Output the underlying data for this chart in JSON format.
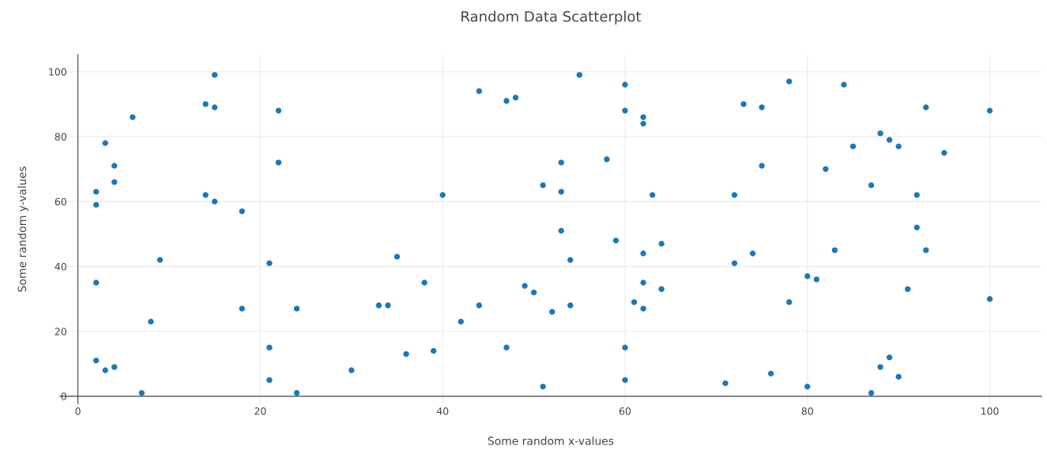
{
  "chart_data": {
    "type": "scatter",
    "title": "Random Data Scatterplot",
    "xlabel": "Some random x-values",
    "ylabel": "Some random y-values",
    "series": [
      {
        "color": "#1f77b4",
        "x": [
          2,
          3,
          4,
          7,
          2,
          2,
          2,
          3,
          4,
          4,
          6,
          8,
          9,
          14,
          14,
          15,
          15,
          15,
          18,
          18,
          21,
          21,
          21,
          22,
          22,
          24,
          24,
          30,
          33,
          34,
          35,
          36,
          38,
          39,
          40,
          42,
          44,
          44,
          47,
          47,
          48,
          49,
          50,
          51,
          51,
          52,
          53,
          53,
          53,
          54,
          54,
          55,
          58,
          59,
          60,
          60,
          60,
          60,
          61,
          62,
          62,
          62,
          62,
          62,
          63,
          64,
          64,
          71,
          72,
          72,
          73,
          74,
          75,
          75,
          76,
          78,
          78,
          80,
          80,
          81,
          82,
          83,
          84,
          85,
          87,
          87,
          88,
          88,
          89,
          89,
          90,
          90,
          91,
          92,
          92,
          93,
          93,
          95,
          100,
          100
        ],
        "values": [
          11,
          8,
          9,
          1,
          35,
          59,
          63,
          78,
          71,
          66,
          86,
          23,
          42,
          90,
          62,
          99,
          89,
          60,
          57,
          27,
          41,
          15,
          5,
          88,
          72,
          27,
          1,
          8,
          28,
          28,
          43,
          13,
          35,
          14,
          62,
          23,
          94,
          28,
          91,
          15,
          92,
          34,
          32,
          65,
          3,
          26,
          72,
          63,
          51,
          42,
          28,
          99,
          73,
          48,
          96,
          88,
          15,
          5,
          29,
          86,
          84,
          44,
          35,
          27,
          62,
          47,
          33,
          4,
          62,
          41,
          90,
          44,
          89,
          71,
          7,
          97,
          29,
          37,
          3,
          36,
          70,
          45,
          96,
          77,
          65,
          1,
          81,
          9,
          79,
          12,
          77,
          6,
          33,
          62,
          52,
          89,
          45,
          75,
          88,
          30
        ]
      }
    ],
    "marker": "circle",
    "xlim": [
      -2,
      105.7
    ],
    "ylim": [
      -2.4,
      105.3
    ],
    "xticks": [
      0,
      20,
      40,
      60,
      80,
      100
    ],
    "yticks": [
      0,
      20,
      40,
      60,
      80,
      100
    ],
    "grid": true
  }
}
